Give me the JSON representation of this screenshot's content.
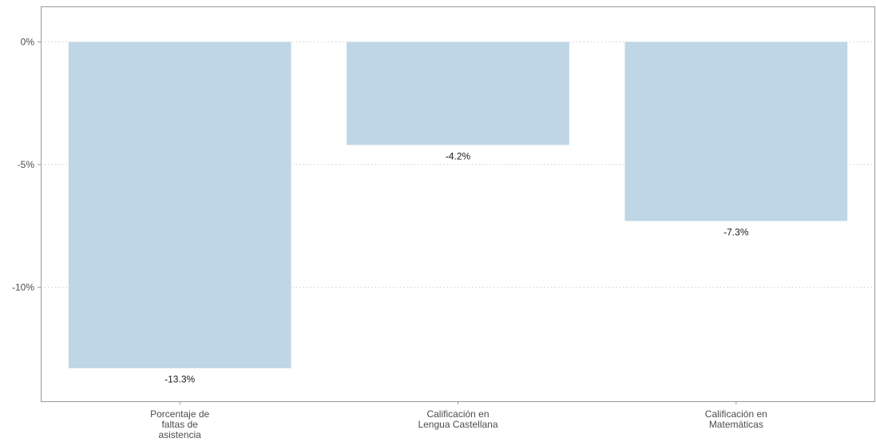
{
  "chart_data": {
    "type": "bar",
    "categories": [
      [
        "Porcentaje de",
        "faltas de",
        "asistencia"
      ],
      [
        "Calificación en",
        "Lengua Castellana"
      ],
      [
        "Calificación en",
        "Matemáticas"
      ]
    ],
    "values": [
      -13.3,
      -4.2,
      -7.3
    ],
    "data_labels": [
      "-13.3%",
      "-4.2%",
      "-7.3%"
    ],
    "title": "",
    "xlabel": "",
    "ylabel": "",
    "ylim": [
      -14.65,
      1.45
    ],
    "yticks": [
      0,
      -5,
      -10
    ],
    "ytick_labels": [
      "0%",
      "-5%",
      "-10%"
    ],
    "grid": "horizontal dotted",
    "legend": "none",
    "colors": {
      "bar": "#bed6e5",
      "grid": "#d0d0d0",
      "axis": "#9a9a9a"
    }
  }
}
